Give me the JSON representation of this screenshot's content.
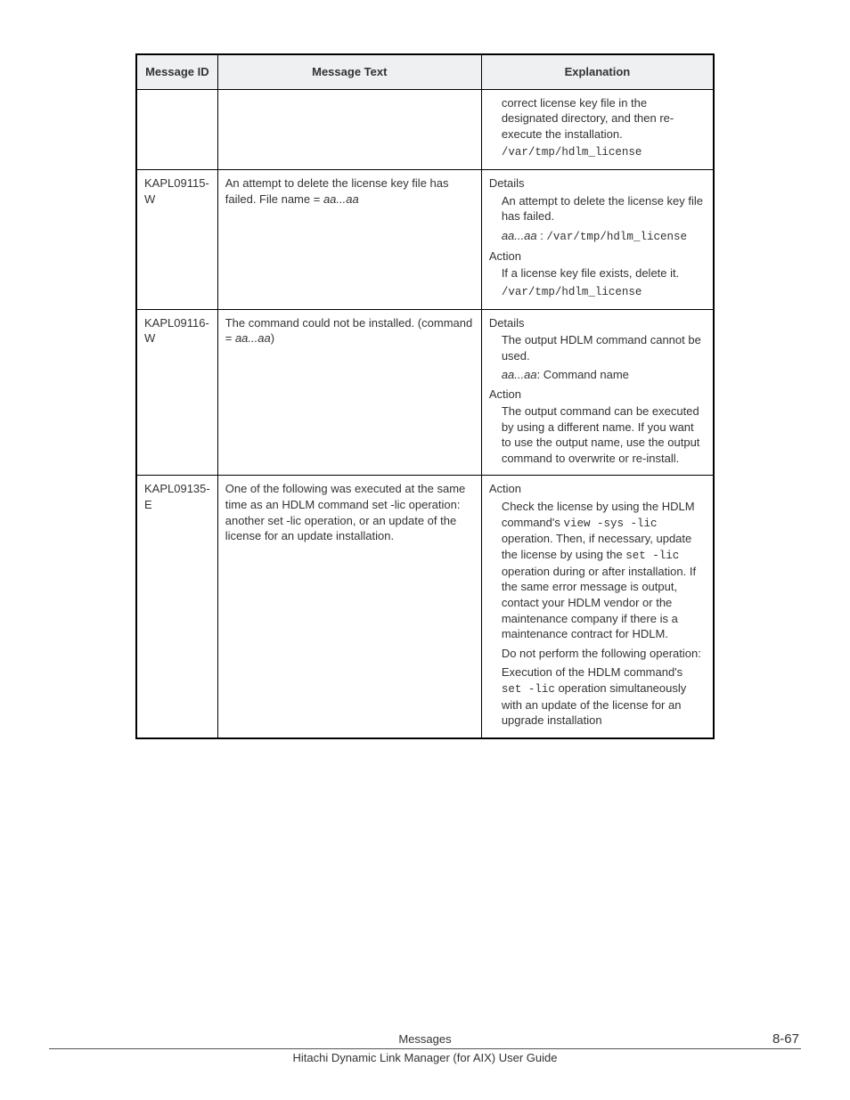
{
  "headers": {
    "id": "Message ID",
    "text": "Message Text",
    "exp": "Explanation"
  },
  "rows": {
    "r0": {
      "id": "",
      "text": "",
      "exp_p1": "correct license key file in the designated directory, and then re-execute the installation.",
      "exp_p2": "/var/tmp/hdlm_license"
    },
    "r1": {
      "id": "KAPL09115-W",
      "text_a": "An attempt to delete the license key file has failed. File name = ",
      "text_b": "aa...aa",
      "details_label": "Details",
      "details_p1": "An attempt to delete the license key file has failed.",
      "details_p2a": "aa...aa",
      "details_p2b": " : ",
      "details_p2c": "/var/tmp/hdlm_license",
      "action_label": "Action",
      "action_p1": "If a license key file exists, delete it.",
      "action_p2": "/var/tmp/hdlm_license"
    },
    "r2": {
      "id": "KAPL09116-W",
      "text_a": "The command could not be installed. (command = ",
      "text_b": "aa...aa",
      "text_c": ")",
      "details_label": "Details",
      "details_p1": "The output HDLM command cannot be used.",
      "details_p2a": "aa...aa",
      "details_p2b": ": Command name",
      "action_label": "Action",
      "action_p1": "The output command can be executed by using a different name. If you want to use the output name, use the output command to overwrite or re-install."
    },
    "r3": {
      "id": "KAPL09135-E",
      "text": "One of the following was executed at the same time as an HDLM command set -lic operation: another set -lic operation, or an update of the license for an update installation.",
      "action_label": "Action",
      "action_p1a": "Check the license by using the HDLM command's ",
      "action_p1b": "view -sys -lic",
      "action_p1c": " operation. Then, if necessary, update the license by using the ",
      "action_p1d": "set -lic",
      "action_p1e": " operation during or after installation. If the same error message is output, contact your HDLM vendor or the maintenance company if there is a maintenance contract for HDLM.",
      "action_p2": "Do not perform the following operation:",
      "action_p3a": "Execution of the HDLM command's ",
      "action_p3b": "set -lic",
      "action_p3c": " operation simultaneously with an update of the license for an upgrade installation"
    }
  },
  "footer": {
    "section": "Messages",
    "page": "8-67",
    "guide": "Hitachi Dynamic Link Manager (for AIX) User Guide"
  }
}
